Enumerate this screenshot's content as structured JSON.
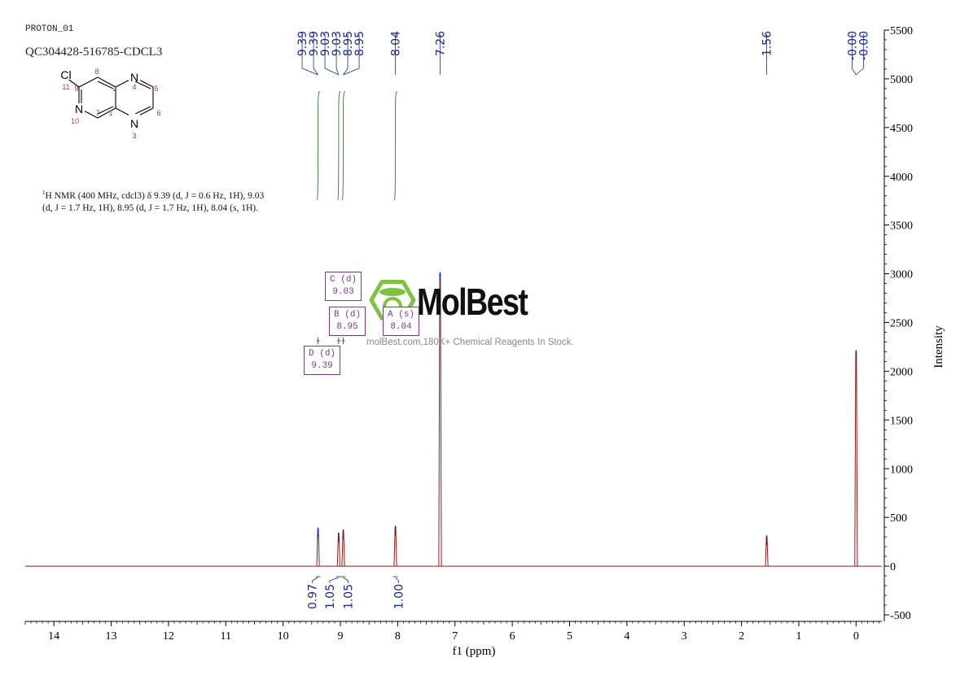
{
  "header": {
    "experiment": "PROTON_01",
    "sample": "QC304428-516785-CDCL3"
  },
  "molecule": {
    "atoms": {
      "cl": "Cl",
      "n4": "N",
      "n10": "N",
      "n3": "N"
    },
    "numbers": [
      "11",
      "9",
      "8",
      "2",
      "4",
      "5",
      "10",
      "7",
      "1",
      "6",
      "3"
    ]
  },
  "description": {
    "line1": "H NMR (400 MHz, cdcl3) δ 9.39 (d, J = 0.6 Hz, 1H), 9.03",
    "line2": "(d, J = 1.7 Hz, 1H), 8.95 (d, J = 1.7 Hz, 1H), 8.04 (s, 1H)."
  },
  "multiplets": [
    {
      "letter": "C",
      "kind": "(d)",
      "shift": "9.03"
    },
    {
      "letter": "B",
      "kind": "(d)",
      "shift": "8.95"
    },
    {
      "letter": "A",
      "kind": "(s)",
      "shift": "8.04"
    },
    {
      "letter": "D",
      "kind": "(d)",
      "shift": "9.39"
    }
  ],
  "watermark": {
    "name": "MolBest",
    "tagline": "molBest.com,180K+ Chemical Reagents In Stock."
  },
  "colors": {
    "spectrum": "#8b1a1a",
    "peak_label": "#1a2a8a",
    "integral": "#2f7a2f",
    "multiplet_box": "#7a3a8a",
    "logo_green": "#7dc242"
  },
  "chart_data": {
    "type": "line",
    "xlabel": "f1 (ppm)",
    "ylabel": "Intensity",
    "xlim": [
      14.5,
      -0.45
    ],
    "ylim": [
      -500,
      5500
    ],
    "x_ticks": [
      14,
      13,
      12,
      11,
      10,
      9,
      8,
      7,
      6,
      5,
      4,
      3,
      2,
      1,
      0
    ],
    "y_ticks": [
      -500,
      0,
      500,
      1000,
      1500,
      2000,
      2500,
      3000,
      3500,
      4000,
      4500,
      5000,
      5500
    ],
    "peaks": [
      {
        "ppm": 9.39,
        "height": 380
      },
      {
        "ppm": 9.03,
        "height": 330
      },
      {
        "ppm": 8.95,
        "height": 360
      },
      {
        "ppm": 8.04,
        "height": 400
      },
      {
        "ppm": 7.26,
        "height": 3000
      },
      {
        "ppm": 1.56,
        "height": 300
      },
      {
        "ppm": 0.0,
        "height": 2200
      }
    ],
    "peak_labels": [
      {
        "ppm": 9.39,
        "label": "9.39"
      },
      {
        "ppm": 9.39,
        "label": "9.39"
      },
      {
        "ppm": 9.03,
        "label": "9.03"
      },
      {
        "ppm": 9.03,
        "label": "9.03"
      },
      {
        "ppm": 8.95,
        "label": "8.95"
      },
      {
        "ppm": 8.95,
        "label": "8.95"
      },
      {
        "ppm": 8.04,
        "label": "8.04"
      },
      {
        "ppm": 7.26,
        "label": "7.26"
      },
      {
        "ppm": 1.56,
        "label": "1.56"
      },
      {
        "ppm": 0.0,
        "label": "-0.00"
      },
      {
        "ppm": 0.0,
        "label": "-0.00"
      }
    ],
    "integrals": [
      {
        "ppm": 9.39,
        "value": "0.97"
      },
      {
        "ppm": 9.03,
        "value": "1.05"
      },
      {
        "ppm": 8.95,
        "value": "1.05"
      },
      {
        "ppm": 8.04,
        "value": "1.00"
      }
    ]
  }
}
